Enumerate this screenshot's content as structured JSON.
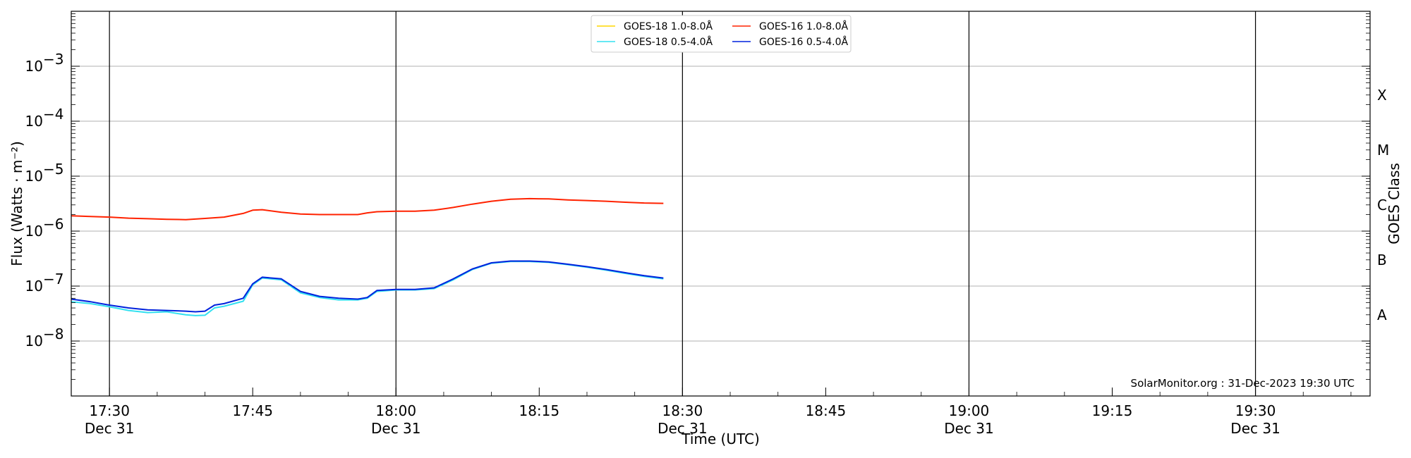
{
  "chart_data": {
    "type": "line",
    "xlabel": "Time (UTC)",
    "ylabel": "Flux (Watts · m⁻²)",
    "y2label": "GOES Class",
    "yscale": "log",
    "ylim": [
      1e-09,
      0.01
    ],
    "xlim": [
      "17:26",
      "19:42"
    ],
    "grid": "horizontal at decades",
    "legend_position": "top-center",
    "footer": "SolarMonitor.org : 31-Dec-2023 19:30 UTC",
    "x_major_ticks": [
      {
        "time": "17:30",
        "label": "17:30",
        "sublabel": "Dec 31"
      },
      {
        "time": "17:45",
        "label": "17:45",
        "sublabel": ""
      },
      {
        "time": "18:00",
        "label": "18:00",
        "sublabel": "Dec 31"
      },
      {
        "time": "18:15",
        "label": "18:15",
        "sublabel": ""
      },
      {
        "time": "18:30",
        "label": "18:30",
        "sublabel": "Dec 31"
      },
      {
        "time": "18:45",
        "label": "18:45",
        "sublabel": ""
      },
      {
        "time": "19:00",
        "label": "19:00",
        "sublabel": "Dec 31"
      },
      {
        "time": "19:15",
        "label": "19:15",
        "sublabel": ""
      },
      {
        "time": "19:30",
        "label": "19:30",
        "sublabel": "Dec 31"
      }
    ],
    "vertical_lines": [
      "17:30",
      "18:00",
      "18:30",
      "19:00",
      "19:30"
    ],
    "y_ticks": [
      {
        "value": 1e-08,
        "base": "10",
        "exp": "−8"
      },
      {
        "value": 1e-07,
        "base": "10",
        "exp": "−7"
      },
      {
        "value": 1e-06,
        "base": "10",
        "exp": "−6"
      },
      {
        "value": 1e-05,
        "base": "10",
        "exp": "−5"
      },
      {
        "value": 0.0001,
        "base": "10",
        "exp": "−4"
      },
      {
        "value": 0.001,
        "base": "10",
        "exp": "−3"
      }
    ],
    "goes_classes": [
      {
        "label": "A",
        "value": 3e-08
      },
      {
        "label": "B",
        "value": 3e-07
      },
      {
        "label": "C",
        "value": 3e-06
      },
      {
        "label": "M",
        "value": 3e-05
      },
      {
        "label": "X",
        "value": 0.0003
      }
    ],
    "series": [
      {
        "name": "GOES-18 1.0-8.0Å",
        "color": "#FFD700",
        "x": [],
        "y": []
      },
      {
        "name": "GOES-16 1.0-8.0Å",
        "color": "#FF2200",
        "x": [
          "17:26",
          "17:28",
          "17:30",
          "17:32",
          "17:34",
          "17:36",
          "17:38",
          "17:40",
          "17:42",
          "17:44",
          "17:45",
          "17:46",
          "17:48",
          "17:50",
          "17:52",
          "17:54",
          "17:56",
          "17:57",
          "17:58",
          "18:00",
          "18:02",
          "18:04",
          "18:06",
          "18:08",
          "18:10",
          "18:12",
          "18:14",
          "18:16",
          "18:18",
          "18:20",
          "18:22",
          "18:24",
          "18:26",
          "18:28"
        ],
        "y": [
          1.9e-06,
          1.85e-06,
          1.8e-06,
          1.72e-06,
          1.68e-06,
          1.64e-06,
          1.62e-06,
          1.7e-06,
          1.8e-06,
          2.1e-06,
          2.4e-06,
          2.45e-06,
          2.2e-06,
          2.05e-06,
          2e-06,
          2e-06,
          2e-06,
          2.15e-06,
          2.25e-06,
          2.3e-06,
          2.3e-06,
          2.4e-06,
          2.7e-06,
          3.1e-06,
          3.5e-06,
          3.8e-06,
          3.9e-06,
          3.85e-06,
          3.7e-06,
          3.6e-06,
          3.5e-06,
          3.35e-06,
          3.25e-06,
          3.2e-06
        ]
      },
      {
        "name": "GOES-18 0.5-4.0Å",
        "color": "#33E0F0",
        "x": [
          "17:26",
          "17:28",
          "17:30",
          "17:32",
          "17:34",
          "17:36",
          "17:38",
          "17:39",
          "17:40",
          "17:41",
          "17:42",
          "17:44",
          "17:45",
          "17:46",
          "17:48",
          "17:50",
          "17:52",
          "17:54",
          "17:56",
          "17:57",
          "17:58",
          "18:00",
          "18:02",
          "18:04",
          "18:06",
          "18:08",
          "18:10",
          "18:12",
          "18:14",
          "18:16",
          "18:18",
          "18:20",
          "18:22",
          "18:24",
          "18:26",
          "18:28"
        ],
        "y": [
          5.2e-08,
          4.8e-08,
          4.2e-08,
          3.6e-08,
          3.3e-08,
          3.4e-08,
          3e-08,
          2.9e-08,
          2.95e-08,
          4e-08,
          4.3e-08,
          5.3e-08,
          1.05e-07,
          1.4e-07,
          1.3e-07,
          7.5e-08,
          6.2e-08,
          5.6e-08,
          5.6e-08,
          6e-08,
          8e-08,
          8.5e-08,
          8.5e-08,
          9e-08,
          1.3e-07,
          2e-07,
          2.6e-07,
          2.8e-07,
          2.8e-07,
          2.7e-07,
          2.45e-07,
          2.2e-07,
          1.95e-07,
          1.7e-07,
          1.5e-07,
          1.35e-07
        ]
      },
      {
        "name": "GOES-16 0.5-4.0Å",
        "color": "#0022DD",
        "x": [
          "17:26",
          "17:28",
          "17:30",
          "17:32",
          "17:34",
          "17:36",
          "17:38",
          "17:39",
          "17:40",
          "17:41",
          "17:42",
          "17:44",
          "17:45",
          "17:46",
          "17:48",
          "17:50",
          "17:52",
          "17:54",
          "17:56",
          "17:57",
          "17:58",
          "18:00",
          "18:02",
          "18:04",
          "18:06",
          "18:08",
          "18:10",
          "18:12",
          "18:14",
          "18:16",
          "18:18",
          "18:20",
          "18:22",
          "18:24",
          "18:26",
          "18:28"
        ],
        "y": [
          5.8e-08,
          5.2e-08,
          4.5e-08,
          4e-08,
          3.7e-08,
          3.6e-08,
          3.5e-08,
          3.4e-08,
          3.5e-08,
          4.5e-08,
          4.8e-08,
          6e-08,
          1.1e-07,
          1.45e-07,
          1.35e-07,
          8e-08,
          6.5e-08,
          6e-08,
          5.8e-08,
          6.2e-08,
          8.3e-08,
          8.7e-08,
          8.7e-08,
          9.3e-08,
          1.35e-07,
          2.05e-07,
          2.65e-07,
          2.85e-07,
          2.85e-07,
          2.75e-07,
          2.5e-07,
          2.25e-07,
          2e-07,
          1.75e-07,
          1.55e-07,
          1.4e-07
        ]
      }
    ]
  }
}
